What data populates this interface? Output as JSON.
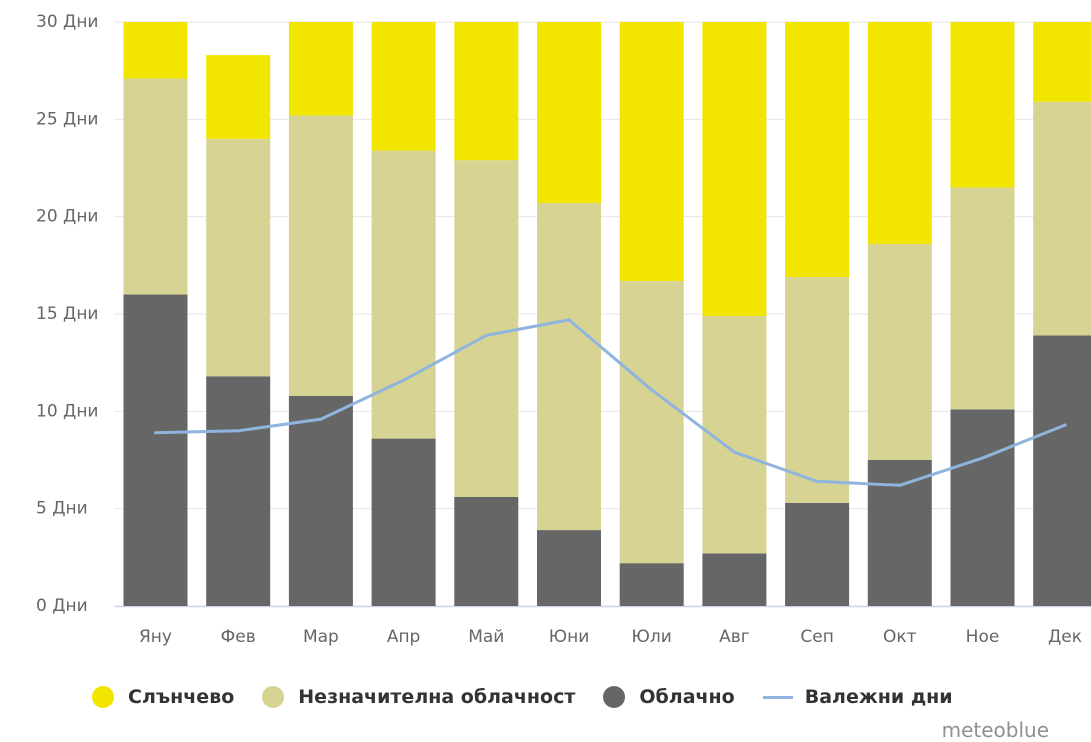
{
  "chart_data": {
    "type": "bar",
    "stacked": true,
    "categories": [
      "Яну",
      "Фев",
      "Мар",
      "Апр",
      "Май",
      "Юни",
      "Юли",
      "Авг",
      "Сеп",
      "Окт",
      "Ное",
      "Дек"
    ],
    "series": [
      {
        "name": "Облачно",
        "type": "bar",
        "color": "#666666",
        "values": [
          16.0,
          11.8,
          10.8,
          8.6,
          5.6,
          3.9,
          2.2,
          2.7,
          5.3,
          7.5,
          10.1,
          13.9
        ]
      },
      {
        "name": "Незначителна облачност",
        "type": "bar",
        "color": "#d6d393",
        "values": [
          11.1,
          12.2,
          14.4,
          14.8,
          17.3,
          16.8,
          14.5,
          12.2,
          11.6,
          11.1,
          11.4,
          12.0
        ]
      },
      {
        "name": "Слънчево",
        "type": "bar",
        "color": "#f2e600",
        "values": [
          2.9,
          4.3,
          4.8,
          6.6,
          7.1,
          9.3,
          13.3,
          15.1,
          13.1,
          11.4,
          8.5,
          4.1
        ]
      },
      {
        "name": "Валежни дни",
        "type": "line",
        "color": "#8fb4de",
        "values": [
          8.9,
          9.0,
          9.6,
          11.6,
          13.9,
          14.7,
          11.1,
          7.9,
          6.4,
          6.2,
          7.6,
          9.3
        ]
      }
    ],
    "ylim": [
      0,
      30
    ],
    "y_ticks": [
      0,
      5,
      10,
      15,
      20,
      25,
      30
    ],
    "y_unit": "Дни",
    "xlabel": "",
    "ylabel": "",
    "legend_position": "bottom"
  },
  "legend": [
    {
      "label": "Слънчево",
      "color": "#f2e600",
      "kind": "dot"
    },
    {
      "label": "Незначителна облачност",
      "color": "#d6d393",
      "kind": "dot"
    },
    {
      "label": "Облачно",
      "color": "#666666",
      "kind": "dot"
    },
    {
      "label": "Валежни дни",
      "color": "#8fb4de",
      "kind": "line"
    }
  ],
  "credit": "meteoblue"
}
